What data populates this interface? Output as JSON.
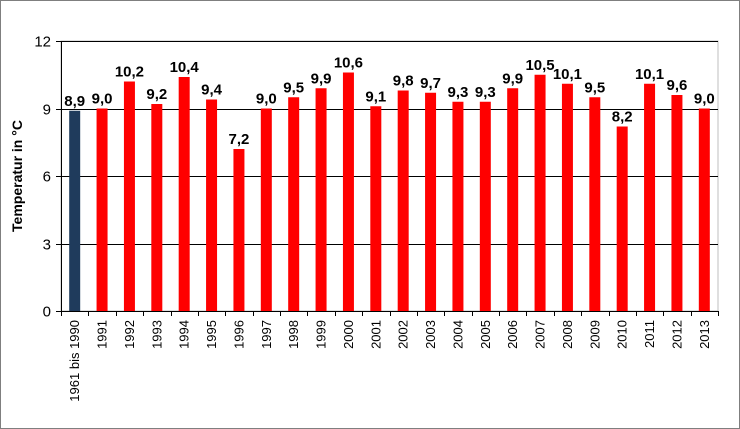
{
  "chart_data": {
    "type": "bar",
    "ylabel": "Temperatur in °C",
    "ylim": [
      0,
      12
    ],
    "yticks": [
      0,
      3,
      6,
      9,
      12
    ],
    "ytick_labels": [
      "0",
      "3",
      "6",
      "9",
      "12"
    ],
    "grid": "horizontal",
    "categories": [
      "1961 bis 1990",
      "1991",
      "1992",
      "1993",
      "1994",
      "1995",
      "1996",
      "1997",
      "1998",
      "1999",
      "2000",
      "2001",
      "2002",
      "2003",
      "2004",
      "2005",
      "2006",
      "2007",
      "2008",
      "2009",
      "2010",
      "2011",
      "2012",
      "2013"
    ],
    "values": [
      8.9,
      9.0,
      10.2,
      9.2,
      10.4,
      9.4,
      7.2,
      9.0,
      9.5,
      9.9,
      10.6,
      9.1,
      9.8,
      9.7,
      9.3,
      9.3,
      9.9,
      10.5,
      10.1,
      9.5,
      8.2,
      10.1,
      9.6,
      9.0
    ],
    "data_labels": [
      "8,9",
      "9,0",
      "10,2",
      "9,2",
      "10,4",
      "9,4",
      "7,2",
      "9,0",
      "9,5",
      "9,9",
      "10,6",
      "9,1",
      "9,8",
      "9,7",
      "9,3",
      "9,3",
      "9,9",
      "10,5",
      "10,1",
      "9,5",
      "8,2",
      "10,1",
      "9,6",
      "9,0"
    ],
    "colors": {
      "reference": "#1f3b5c",
      "years": "#ff0000",
      "grid": "#000000"
    }
  }
}
